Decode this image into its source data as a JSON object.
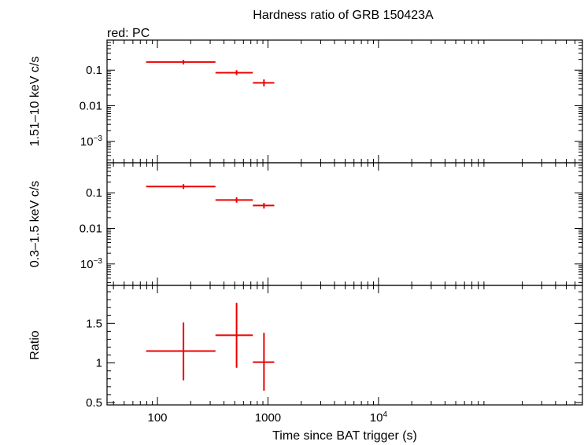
{
  "chart_data": {
    "type": "scatter",
    "title": "Hardness ratio of GRB 150423A",
    "legend_text": "red: PC",
    "xlabel": "Time since BAT trigger (s)",
    "x_scale": "log",
    "xlim": [
      35,
      700000
    ],
    "x_ticks": [
      {
        "value": 100,
        "label": "100"
      },
      {
        "value": 1000,
        "label": "1000"
      },
      {
        "value": 10000,
        "label": "10",
        "exp": "4"
      }
    ],
    "series_color": "#ee0000",
    "panels": [
      {
        "id": "hard",
        "ylabel": "1.51–10 keV c/s",
        "y_scale": "log",
        "ylim": [
          0.00025,
          0.7
        ],
        "y_ticks": [
          {
            "value": 0.1,
            "label": "0.1"
          },
          {
            "value": 0.01,
            "label": "0.01"
          },
          {
            "value": 0.001,
            "label": "10",
            "exp": "−3"
          }
        ],
        "points": [
          {
            "x": 172,
            "xlo": 79,
            "xhi": 335,
            "y": 0.17,
            "ylo": 0.145,
            "yhi": 0.195
          },
          {
            "x": 520,
            "xlo": 335,
            "xhi": 730,
            "y": 0.085,
            "ylo": 0.073,
            "yhi": 0.1
          },
          {
            "x": 920,
            "xlo": 730,
            "xhi": 1140,
            "y": 0.044,
            "ylo": 0.035,
            "yhi": 0.055
          }
        ]
      },
      {
        "id": "soft",
        "ylabel": "0.3–1.5 keV c/s",
        "y_scale": "log",
        "ylim": [
          0.00025,
          0.7
        ],
        "y_ticks": [
          {
            "value": 0.1,
            "label": "0.1"
          },
          {
            "value": 0.01,
            "label": "0.01"
          },
          {
            "value": 0.001,
            "label": "10",
            "exp": "−3"
          }
        ],
        "points": [
          {
            "x": 172,
            "xlo": 79,
            "xhi": 335,
            "y": 0.15,
            "ylo": 0.128,
            "yhi": 0.175
          },
          {
            "x": 520,
            "xlo": 335,
            "xhi": 730,
            "y": 0.063,
            "ylo": 0.053,
            "yhi": 0.075
          },
          {
            "x": 920,
            "xlo": 730,
            "xhi": 1140,
            "y": 0.044,
            "ylo": 0.036,
            "yhi": 0.052
          }
        ]
      },
      {
        "id": "ratio",
        "ylabel": "Ratio",
        "y_scale": "linear",
        "ylim": [
          0.47,
          1.98
        ],
        "y_ticks": [
          {
            "value": 0.5,
            "label": "0.5"
          },
          {
            "value": 1,
            "label": "1"
          },
          {
            "value": 1.5,
            "label": "1.5"
          }
        ],
        "points": [
          {
            "x": 172,
            "xlo": 79,
            "xhi": 335,
            "y": 1.15,
            "ylo": 0.78,
            "yhi": 1.51
          },
          {
            "x": 520,
            "xlo": 335,
            "xhi": 730,
            "y": 1.35,
            "ylo": 0.94,
            "yhi": 1.76
          },
          {
            "x": 920,
            "xlo": 730,
            "xhi": 1140,
            "y": 1.01,
            "ylo": 0.65,
            "yhi": 1.38
          }
        ]
      }
    ]
  }
}
